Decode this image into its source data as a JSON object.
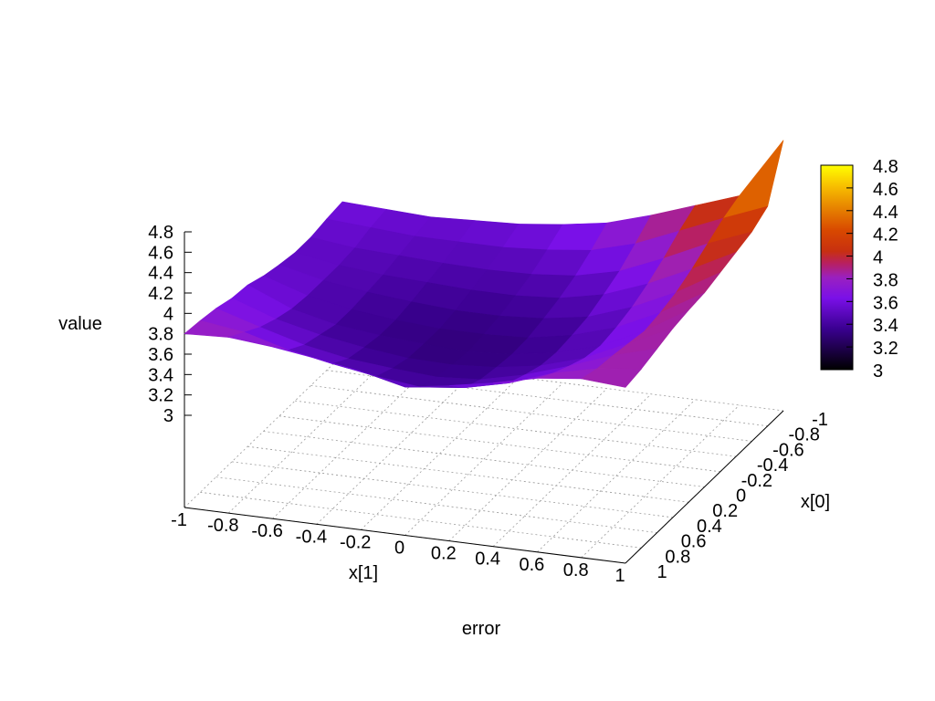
{
  "chart_data": {
    "type": "surface3d",
    "title": "error",
    "xlabel": "x[1]",
    "ylabel": "x[0]",
    "zlabel": "value",
    "x_range": [
      -1,
      1
    ],
    "y_range": [
      -1,
      1
    ],
    "z_range": [
      3,
      4.8
    ],
    "x_ticks": [
      "-1",
      "-0.8",
      "-0.6",
      "-0.4",
      "-0.2",
      "0",
      "0.2",
      "0.4",
      "0.6",
      "0.8",
      "1"
    ],
    "y_ticks": [
      "-1",
      "-0.8",
      "-0.6",
      "-0.4",
      "-0.2",
      "0",
      "0.2",
      "0.4",
      "0.6",
      "0.8",
      "1"
    ],
    "z_ticks": [
      "3",
      "3.2",
      "3.4",
      "3.6",
      "3.8",
      "4",
      "4.2",
      "4.4",
      "4.6",
      "4.8"
    ],
    "colorbar": {
      "range": [
        3,
        4.8
      ],
      "ticks": [
        "3",
        "3.2",
        "3.4",
        "3.6",
        "3.8",
        "4",
        "4.2",
        "4.4",
        "4.6",
        "4.8"
      ],
      "palette": [
        "#000000",
        "#2a0080",
        "#5a00d0",
        "#8c10f0",
        "#b02080",
        "#c83010",
        "#d84000",
        "#e88000",
        "#f8c000",
        "#ffff00"
      ]
    },
    "grid": true,
    "x": [
      -1,
      -0.8,
      -0.6,
      -0.4,
      -0.2,
      0,
      0.2,
      0.4,
      0.6,
      0.8,
      1
    ],
    "y": [
      -1,
      -0.8,
      -0.6,
      -0.4,
      -0.2,
      0,
      0.2,
      0.4,
      0.6,
      0.8,
      1
    ],
    "z": [
      [
        3.8,
        3.82,
        3.78,
        3.72,
        3.65,
        3.55,
        3.62,
        3.7,
        3.8,
        3.85,
        3.82
      ],
      [
        3.78,
        3.72,
        3.6,
        3.52,
        3.45,
        3.4,
        3.45,
        3.55,
        3.7,
        3.8,
        3.85
      ],
      [
        3.75,
        3.62,
        3.5,
        3.42,
        3.38,
        3.35,
        3.38,
        3.48,
        3.62,
        3.78,
        3.9
      ],
      [
        3.7,
        3.55,
        3.45,
        3.38,
        3.33,
        3.32,
        3.35,
        3.42,
        3.55,
        3.75,
        3.95
      ],
      [
        3.68,
        3.5,
        3.4,
        3.35,
        3.32,
        3.3,
        3.33,
        3.4,
        3.52,
        3.72,
        3.98
      ],
      [
        3.62,
        3.48,
        3.4,
        3.35,
        3.32,
        3.32,
        3.34,
        3.42,
        3.55,
        3.75,
        4.0
      ],
      [
        3.58,
        3.48,
        3.42,
        3.38,
        3.35,
        3.35,
        3.38,
        3.45,
        3.6,
        3.8,
        4.05
      ],
      [
        3.55,
        3.48,
        3.44,
        3.42,
        3.4,
        3.4,
        3.43,
        3.52,
        3.68,
        3.88,
        4.1
      ],
      [
        3.55,
        3.5,
        3.48,
        3.46,
        3.45,
        3.46,
        3.5,
        3.6,
        3.78,
        3.98,
        4.15
      ],
      [
        3.58,
        3.55,
        3.52,
        3.52,
        3.52,
        3.55,
        3.6,
        3.72,
        3.9,
        4.08,
        4.25
      ],
      [
        3.6,
        3.58,
        3.56,
        3.58,
        3.6,
        3.65,
        3.72,
        3.85,
        4.0,
        4.15,
        4.75
      ]
    ]
  }
}
